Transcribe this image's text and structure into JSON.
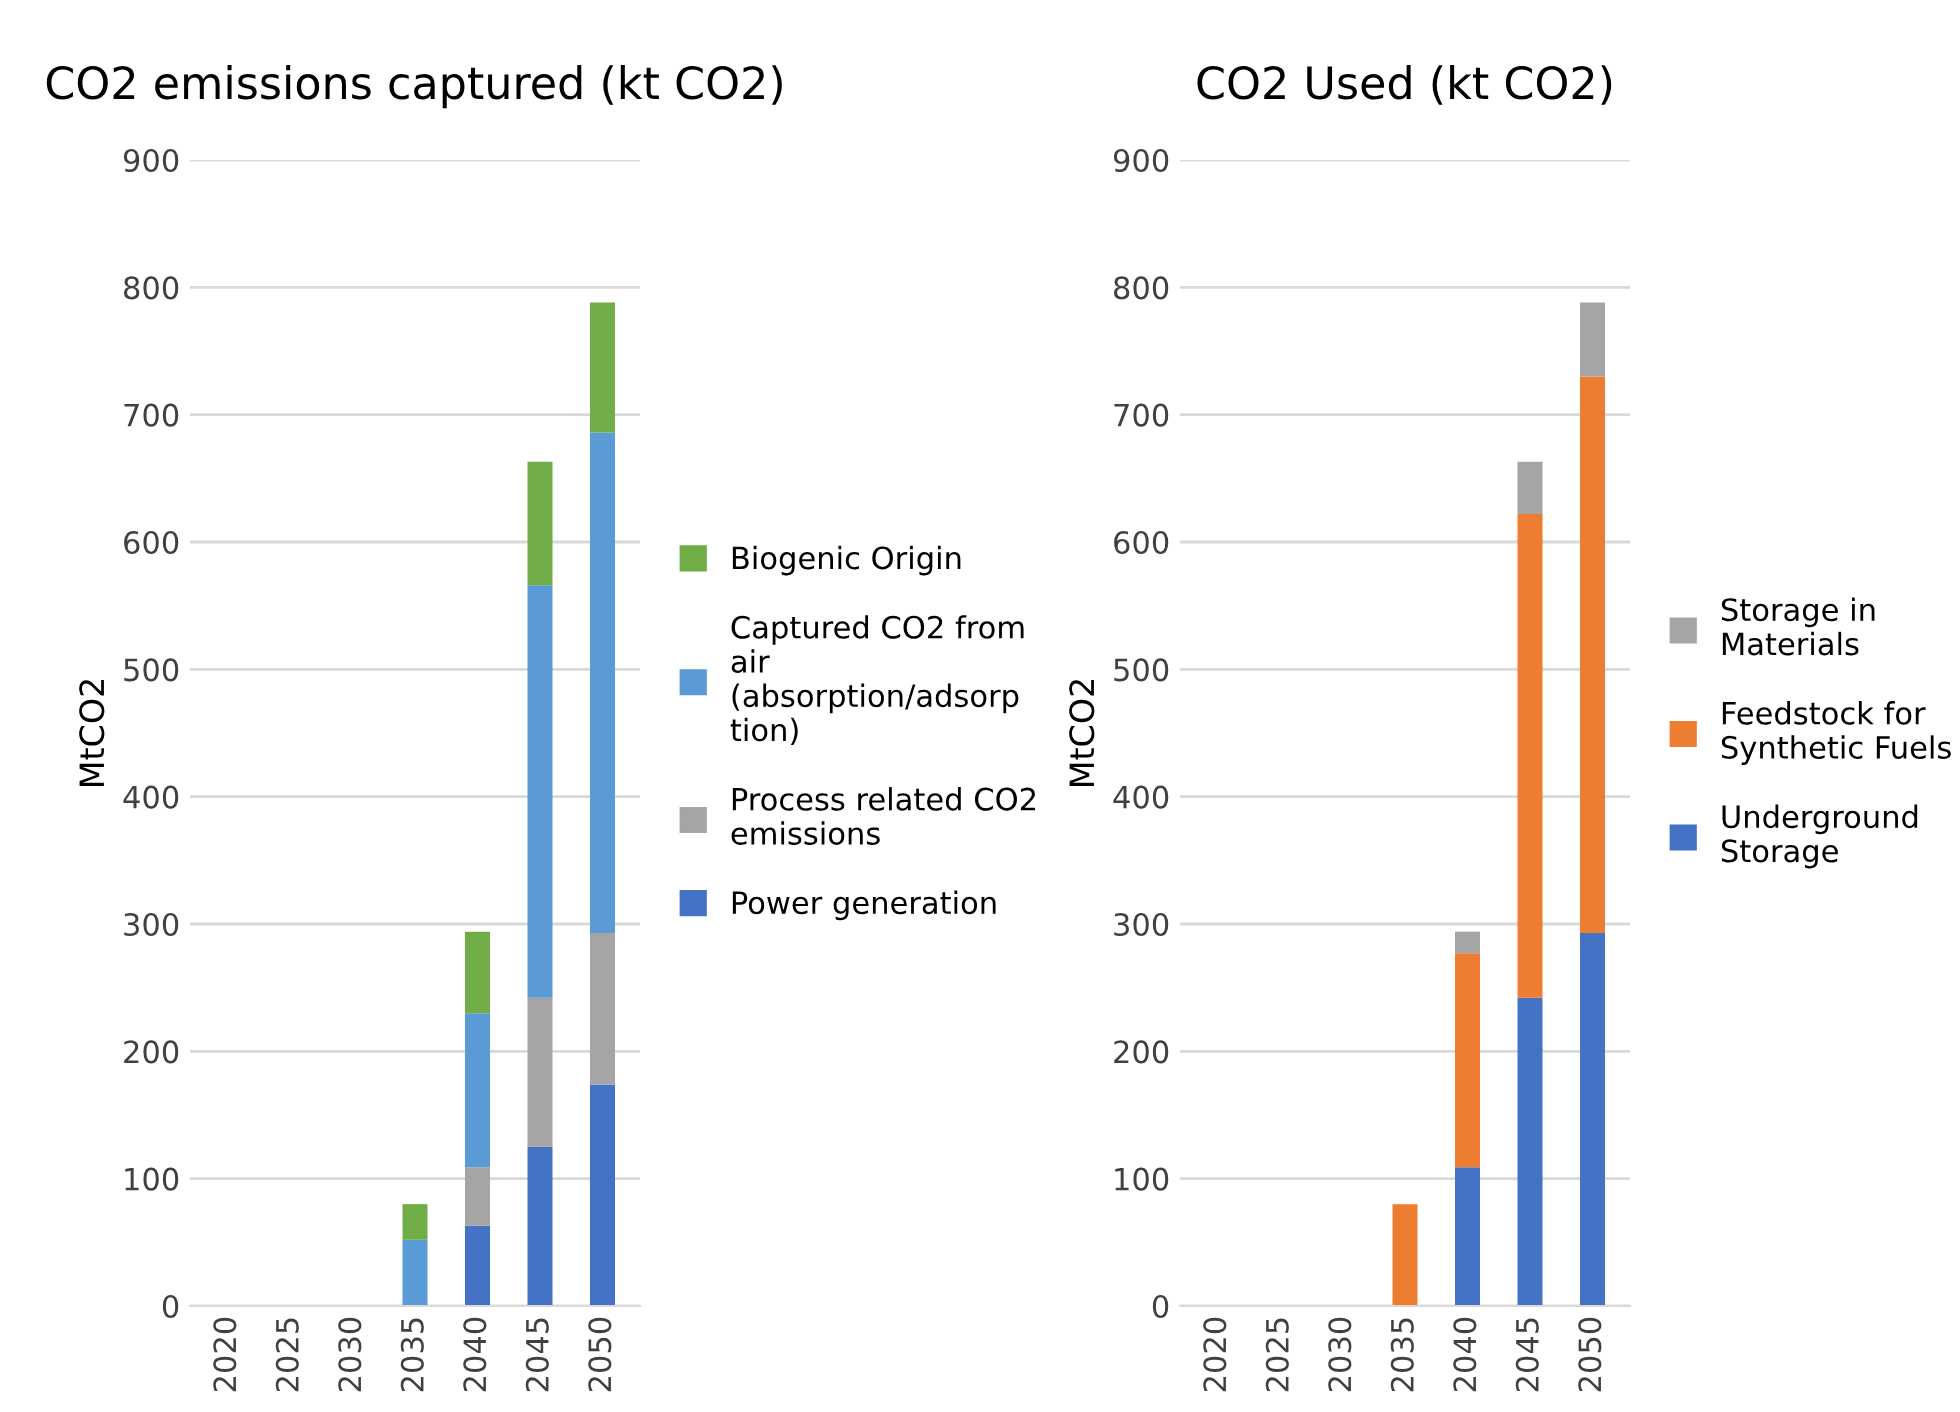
{
  "chart_data": [
    {
      "type": "bar",
      "title": "CO2 emissions captured (kt CO2)",
      "ylabel": "MtCO2",
      "stacked": true,
      "categories": [
        "2020",
        "2025",
        "2030",
        "2035",
        "2040",
        "2045",
        "2050"
      ],
      "ylim": [
        0,
        900
      ],
      "yticks": [
        0,
        100,
        200,
        300,
        400,
        500,
        600,
        700,
        800,
        900
      ],
      "grid": "y",
      "legend": "right",
      "series": [
        {
          "name": "Power generation",
          "color": "#4472c4",
          "values": [
            0,
            0,
            0,
            0,
            63,
            125,
            174
          ]
        },
        {
          "name": "Process related CO2\nemissions",
          "color": "#a5a5a5",
          "values": [
            0,
            0,
            0,
            0,
            46,
            117,
            119
          ]
        },
        {
          "name": "Captured CO2 from\nair\n(absorption/adsorp\ntion)",
          "color": "#5b9bd5",
          "values": [
            0,
            0,
            0,
            52,
            121,
            324,
            393
          ]
        },
        {
          "name": "Biogenic Origin",
          "color": "#70ad47",
          "values": [
            0,
            0,
            0,
            28,
            64,
            97,
            102
          ]
        }
      ]
    },
    {
      "type": "bar",
      "title": "CO2 Used (kt CO2)",
      "ylabel": "MtCO2",
      "stacked": true,
      "categories": [
        "2020",
        "2025",
        "2030",
        "2035",
        "2040",
        "2045",
        "2050"
      ],
      "ylim": [
        0,
        900
      ],
      "yticks": [
        0,
        100,
        200,
        300,
        400,
        500,
        600,
        700,
        800,
        900
      ],
      "grid": "y",
      "legend": "right",
      "series": [
        {
          "name": "Underground\nStorage",
          "color": "#4472c4",
          "values": [
            0,
            0,
            0,
            0,
            109,
            242,
            293
          ]
        },
        {
          "name": "Feedstock for\nSynthetic Fuels",
          "color": "#ed7d31",
          "values": [
            0,
            0,
            0,
            80,
            168,
            380,
            437
          ]
        },
        {
          "name": "Storage in\nMaterials",
          "color": "#a5a5a5",
          "values": [
            0,
            0,
            0,
            0,
            17,
            41,
            58
          ]
        }
      ]
    }
  ]
}
